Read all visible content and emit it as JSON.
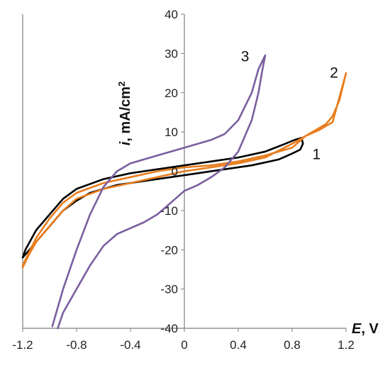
{
  "chart_data": {
    "type": "line",
    "title": "",
    "xlabel": {
      "symbol": "E",
      "unit": ", V"
    },
    "ylabel": {
      "symbol": "i",
      "unit": ", mA/cm",
      "sup": "2"
    },
    "xlim": [
      -1.2,
      1.2
    ],
    "ylim": [
      -40,
      40
    ],
    "xticks": [
      "-1.2",
      "-0.8",
      "-0.4",
      "0",
      "0.4",
      "0.8",
      "1.2"
    ],
    "xtick_values": [
      -1.2,
      -0.8,
      -0.4,
      0,
      0.4,
      0.8,
      1.2
    ],
    "yticks": [
      "40",
      "30",
      "20",
      "10",
      "0",
      "-10",
      "-20",
      "-30",
      "-40"
    ],
    "ytick_values": [
      40,
      30,
      20,
      10,
      0,
      -10,
      -20,
      -30,
      -40
    ],
    "grid": false,
    "series": [
      {
        "name": "1",
        "color": "#000000",
        "x": [
          -1.2,
          -1.18,
          -1.1,
          -1.0,
          -0.9,
          -0.8,
          -0.6,
          -0.4,
          -0.2,
          0.0,
          0.2,
          0.4,
          0.6,
          0.75,
          0.82,
          0.87,
          0.88,
          0.86,
          0.8,
          0.7,
          0.5,
          0.3,
          0.1,
          -0.1,
          -0.3,
          -0.5,
          -0.6,
          -0.7,
          -0.8,
          -0.9,
          -1.0,
          -1.1,
          -1.2
        ],
        "y": [
          -22,
          -20,
          -15,
          -11,
          -7,
          -4.5,
          -2,
          -0.5,
          0.5,
          1.5,
          2.5,
          3.5,
          5,
          7,
          8,
          8.5,
          7,
          5.5,
          4.5,
          3,
          1.5,
          0.5,
          -0.5,
          -1.5,
          -2.5,
          -3.5,
          -4.5,
          -5.5,
          -7.5,
          -10,
          -14,
          -18,
          -22
        ],
        "label_pos": [
          0.95,
          3.1
        ]
      },
      {
        "name": "2",
        "color": "#e87d1e",
        "x": [
          -1.2,
          -1.15,
          -1.1,
          -1.0,
          -0.9,
          -0.8,
          -0.6,
          -0.4,
          -0.2,
          0.0,
          0.2,
          0.4,
          0.6,
          0.8,
          0.9,
          1.0,
          1.05,
          1.1,
          1.15,
          1.2,
          1.1,
          1.0,
          0.9,
          0.8,
          0.6,
          0.4,
          0.2,
          0.0,
          -0.2,
          -0.4,
          -0.6,
          -0.8,
          -0.9,
          -1.0,
          -1.1,
          -1.2
        ],
        "y": [
          -24.5,
          -21,
          -18,
          -14,
          -10,
          -7,
          -4.5,
          -3,
          -1.5,
          0,
          1,
          2,
          3.5,
          7,
          9,
          11,
          12,
          14,
          18,
          25,
          12.5,
          10.5,
          9,
          6,
          4,
          2.5,
          1.5,
          1,
          0,
          -1.5,
          -3,
          -5.5,
          -8,
          -12,
          -17,
          -24
        ],
        "label_pos": [
          1.08,
          23.8
        ]
      },
      {
        "name": "3",
        "color": "#7b5f9f",
        "x": [
          -0.98,
          -0.9,
          -0.8,
          -0.7,
          -0.6,
          -0.5,
          -0.4,
          -0.2,
          0.0,
          0.1,
          0.2,
          0.3,
          0.4,
          0.5,
          0.55,
          0.6,
          0.58,
          0.55,
          0.5,
          0.4,
          0.3,
          0.2,
          0.1,
          0.0,
          -0.1,
          -0.2,
          -0.3,
          -0.5,
          -0.6,
          -0.7,
          -0.8,
          -0.9,
          -0.94
        ],
        "y": [
          -39.5,
          -30,
          -20,
          -11,
          -4,
          0,
          2,
          4,
          6,
          7,
          8,
          9.5,
          13,
          20,
          26,
          29.5,
          26,
          20,
          13,
          5,
          1,
          -1.5,
          -3.5,
          -5,
          -8,
          -11,
          -13,
          -16,
          -19,
          -24,
          -30,
          -36,
          -40
        ],
        "label_pos": [
          0.42,
          28
        ]
      }
    ]
  }
}
